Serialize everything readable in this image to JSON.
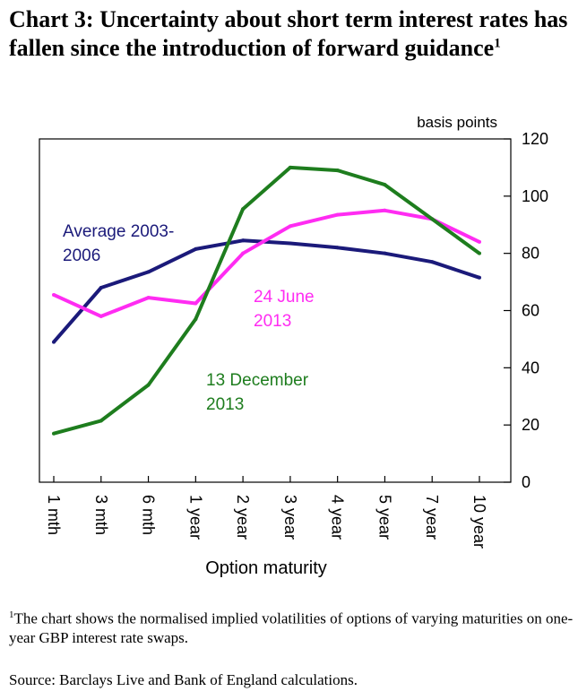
{
  "title": {
    "text": "Chart 3: Uncertainty about short term interest rates has fallen since the introduction of forward guidance",
    "superscript": "1"
  },
  "chart_data": {
    "type": "line",
    "title": "",
    "xlabel": "Option maturity",
    "ylabel": "basis points",
    "ylim": [
      0,
      120
    ],
    "yticks": [
      0,
      20,
      40,
      60,
      80,
      100,
      120
    ],
    "y_axis_side": "right",
    "grid": false,
    "legend": "inline labels",
    "categories": [
      "1 mth",
      "3 mth",
      "6 mth",
      "1 year",
      "2 year",
      "3 year",
      "4 year",
      "5 year",
      "7 year",
      "10 year"
    ],
    "series": [
      {
        "name": "Average 2003-2006",
        "label_lines": [
          "Average 2003-",
          "2006"
        ],
        "color": "#1b1a7a",
        "values": [
          49,
          68,
          73.5,
          81.5,
          84.5,
          83.5,
          82,
          80,
          77,
          71.5
        ]
      },
      {
        "name": "24 June 2013",
        "label_lines": [
          "24 June",
          "2013"
        ],
        "color": "#ff2cf2",
        "values": [
          65.5,
          58,
          64.5,
          62.5,
          80,
          89.5,
          93.5,
          95,
          92,
          84
        ]
      },
      {
        "name": "13 December 2013",
        "label_lines": [
          "13 December",
          "2013"
        ],
        "color": "#1e7d1e",
        "values": [
          17,
          21.5,
          34,
          57,
          95.5,
          110,
          109,
          104,
          92,
          80
        ]
      }
    ]
  },
  "footnote": {
    "marker": "1",
    "text": "The chart shows the normalised implied volatilities of options of varying maturities on one-year GBP interest rate swaps."
  },
  "source": "Source: Barclays Live and Bank of England calculations."
}
